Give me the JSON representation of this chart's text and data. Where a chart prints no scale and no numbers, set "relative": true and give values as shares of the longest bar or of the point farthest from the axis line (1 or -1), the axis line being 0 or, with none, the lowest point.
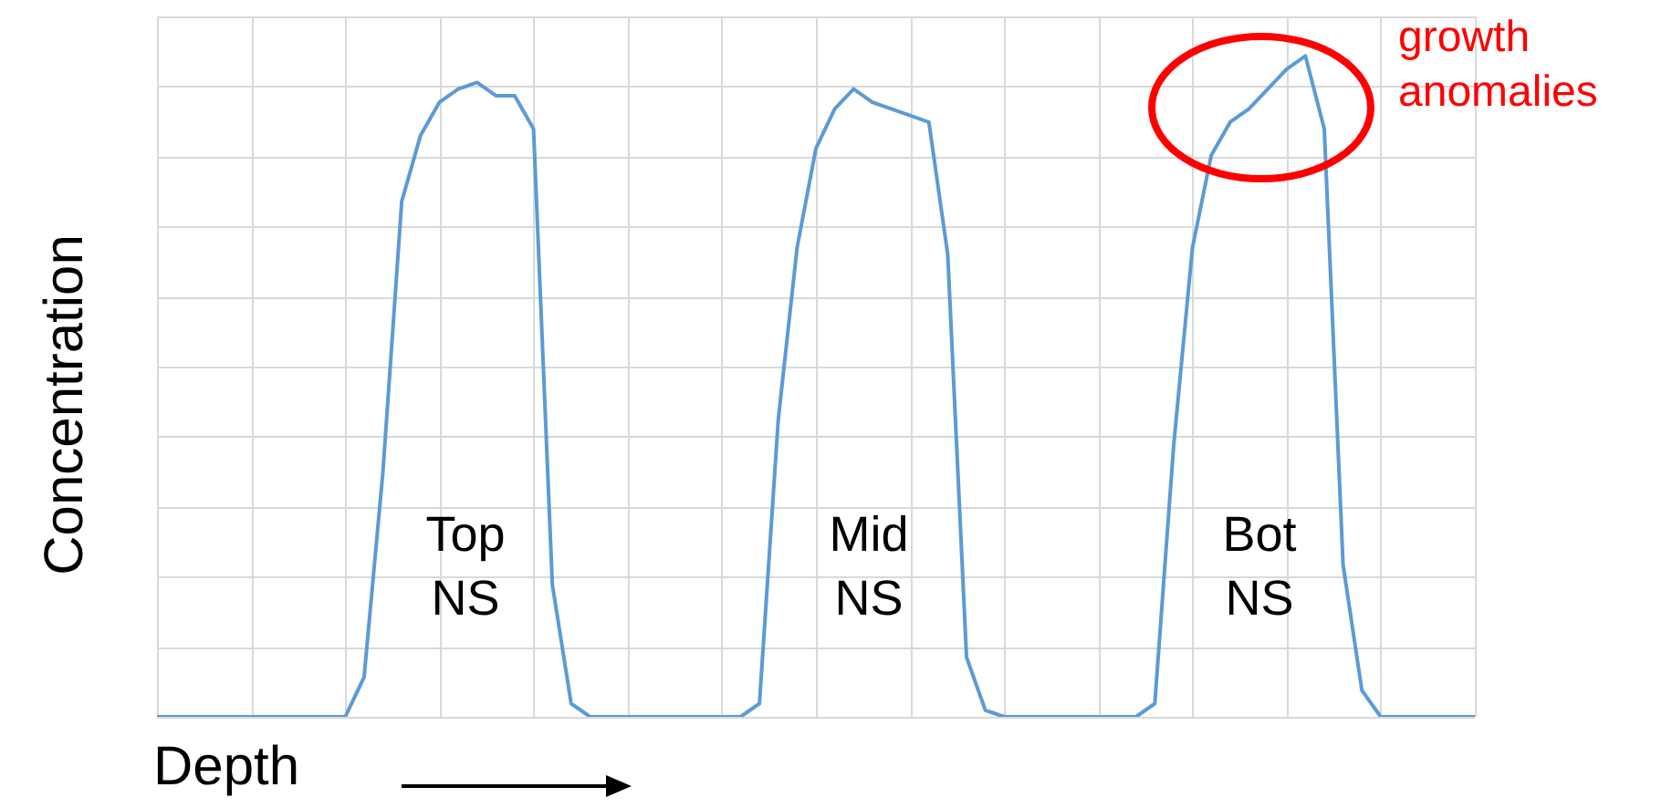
{
  "chart_data": {
    "type": "line",
    "relative": true,
    "xlabel": "Depth",
    "ylabel": "Concentration",
    "grid": true,
    "marker": "none",
    "line_style": "solid",
    "categories": [
      null,
      null,
      null,
      null,
      null,
      null,
      null,
      null,
      null,
      null,
      null,
      null,
      null,
      null,
      null,
      null,
      null,
      null,
      null,
      null,
      null,
      null,
      null,
      null,
      null,
      null,
      null,
      null,
      null,
      null,
      null,
      null,
      null,
      null,
      null,
      null,
      null,
      null,
      null,
      null,
      null,
      null,
      null,
      null,
      null,
      null,
      null,
      null,
      null,
      null,
      null,
      null,
      null,
      null,
      null,
      null,
      null,
      null,
      null,
      null,
      null,
      null,
      null,
      null,
      null,
      null,
      null,
      null,
      null,
      null,
      null
    ],
    "series": [
      {
        "color": "#5b9bd5",
        "values": [
          0,
          0,
          0,
          0,
          0,
          0,
          0,
          0,
          0,
          0,
          0,
          0.06,
          0.37,
          0.78,
          0.88,
          0.93,
          0.95,
          0.96,
          0.94,
          0.94,
          0.89,
          0.2,
          0.02,
          0,
          0,
          0,
          0,
          0,
          0,
          0,
          0,
          0,
          0.02,
          0.45,
          0.71,
          0.86,
          0.92,
          0.95,
          0.93,
          0.92,
          0.91,
          0.9,
          0.7,
          0.09,
          0.01,
          0,
          0,
          0,
          0,
          0,
          0,
          0,
          0,
          0.02,
          0.41,
          0.71,
          0.85,
          0.9,
          0.92,
          0.95,
          0.98,
          1,
          0.89,
          0.23,
          0.04,
          0,
          0,
          0,
          0,
          0,
          0
        ]
      }
    ],
    "annotations": [
      "Top NS",
      "Mid NS",
      "Bot NS",
      "growth anomalies"
    ]
  }
}
